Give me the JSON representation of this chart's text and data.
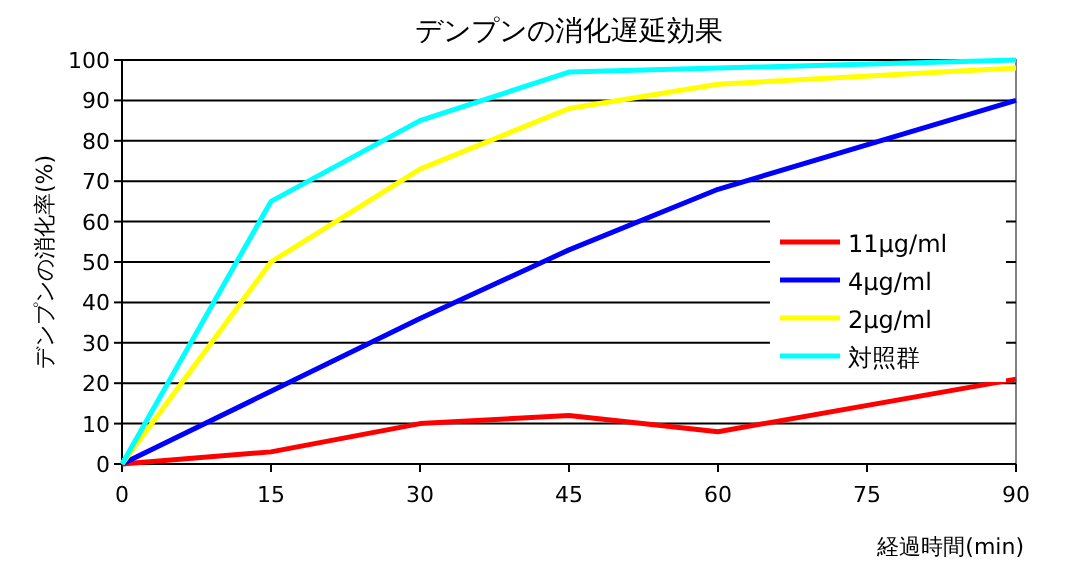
{
  "chart_data": {
    "type": "line",
    "title": "デンプンの消化遅延効果",
    "xlabel": "経過時間(min)",
    "ylabel": "デンプンの消化率(%)",
    "x": [
      0,
      15,
      30,
      45,
      60,
      90
    ],
    "series": [
      {
        "name": "11μg/ml",
        "color": "#ff0000",
        "values": [
          0,
          3,
          10,
          12,
          8,
          21
        ]
      },
      {
        "name": "4μg/ml",
        "color": "#0000ff",
        "values": [
          0,
          18,
          36,
          53,
          68,
          90
        ]
      },
      {
        "name": "2μg/ml",
        "color": "#ffff00",
        "values": [
          0,
          50,
          73,
          88,
          94,
          98
        ]
      },
      {
        "name": "対照群",
        "color": "#00ffff",
        "values": [
          0,
          65,
          85,
          97,
          98,
          100
        ]
      }
    ],
    "xlim": [
      0,
      90
    ],
    "xticks": [
      0,
      15,
      30,
      45,
      60,
      75,
      90
    ],
    "ylim": [
      0,
      100
    ],
    "yticks": [
      0,
      10,
      20,
      30,
      40,
      50,
      60,
      70,
      80,
      90,
      100
    ],
    "grid": "y",
    "legend": "right",
    "marker": "none",
    "line_style": "solid"
  }
}
